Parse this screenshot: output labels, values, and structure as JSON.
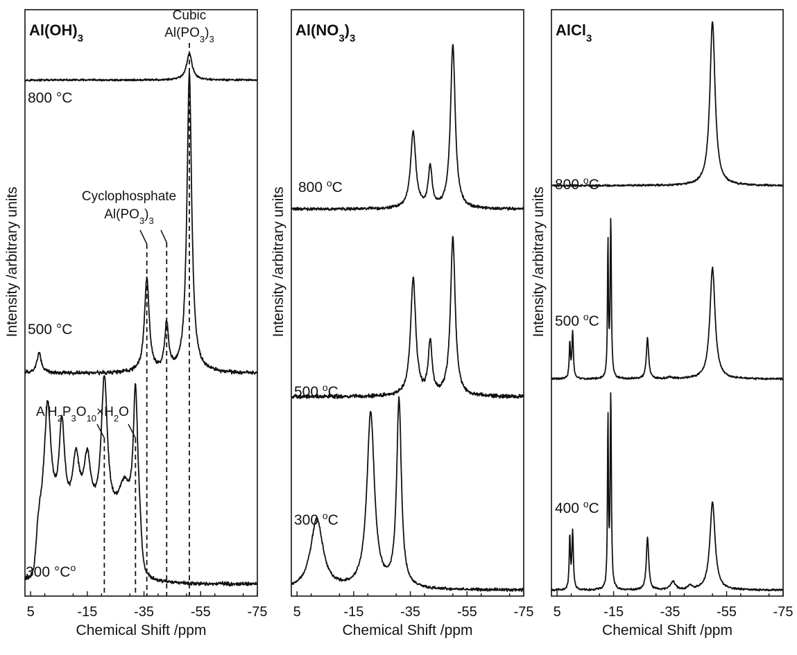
{
  "chart_data": [
    {
      "type": "line",
      "title": "Al(OH)",
      "title_sub": "3",
      "xlabel": "Chemical Shift /ppm",
      "ylabel": "Intensity /arbitrary units",
      "xlim": [
        7,
        -75
      ],
      "x_reversed": true,
      "xticks": [
        "5",
        "-15",
        "-35",
        "-55",
        "-75"
      ],
      "xtick_values": [
        5,
        -15,
        -35,
        -55,
        -75
      ],
      "series": [
        {
          "label": "800 °C",
          "baseline": 0.88,
          "peaks": [
            [
              -51,
              0.045,
              1.2
            ]
          ],
          "noise": 0.002
        },
        {
          "label": "500 °C",
          "baseline": 0.38,
          "peaks": [
            [
              2,
              0.035,
              0.9
            ],
            [
              -36,
              0.16,
              1.0
            ],
            [
              -43,
              0.08,
              0.8
            ],
            [
              -51,
              0.51,
              1.0
            ]
          ],
          "noise": 0.004
        },
        {
          "label": "300 °C",
          "label_sup": "o",
          "baseline": 0.02,
          "peaks": [
            [
              -1,
              0.2,
              1.4
            ],
            [
              -6,
              0.16,
              1.2
            ],
            [
              -11,
              0.1,
              1.5
            ],
            [
              -15,
              0.1,
              1.5
            ],
            [
              -21,
              0.24,
              1.3
            ],
            [
              -28,
              0.06,
              2.5
            ],
            [
              -32,
              0.22,
              0.9
            ]
          ],
          "plateau": [
            [
              3,
              -34,
              0.1
            ]
          ],
          "noise": 0.004
        }
      ],
      "annotations": [
        {
          "text": "Cubic",
          "target": -51
        },
        {
          "text": "Al(PO",
          "sub": "3",
          "suffix": ")",
          "sub2": "3",
          "target": -51
        },
        {
          "text": "Cyclophosphate",
          "targets": [
            -36,
            -43
          ]
        },
        {
          "text": "Al(PO",
          "sub": "3",
          "suffix": ")",
          "sub2": "3"
        },
        {
          "text": "AlH",
          "parts": [
            [
              "2",
              "P"
            ],
            [
              "3",
              "O"
            ],
            [
              "10",
              "×H"
            ],
            [
              "2",
              "O"
            ]
          ],
          "targets": [
            -21,
            -32
          ]
        }
      ]
    },
    {
      "type": "line",
      "title": "Al(NO",
      "title_sub": "3",
      "title_suffix": ")",
      "title_sub2": "3",
      "xlabel": "Chemical Shift /ppm",
      "ylabel": "Intensity /arbitrary units",
      "xlim": [
        7,
        -75
      ],
      "x_reversed": true,
      "xticks": [
        "5",
        "-15",
        "-35",
        "-55",
        "-75"
      ],
      "xtick_values": [
        5,
        -15,
        -35,
        -55,
        -75
      ],
      "series": [
        {
          "label": "800 ",
          "label_sup": "o",
          "label_suffix": "C",
          "baseline": 0.66,
          "peaks": [
            [
              -36,
              0.13,
              1.1
            ],
            [
              -42,
              0.07,
              0.8
            ],
            [
              -50,
              0.28,
              1.0
            ]
          ],
          "noise": 0.003
        },
        {
          "label": "500 ",
          "label_sup": "o",
          "label_suffix": "C",
          "baseline": 0.34,
          "peaks": [
            [
              -36,
              0.2,
              1.1
            ],
            [
              -42,
              0.09,
              0.8
            ],
            [
              -50,
              0.27,
              1.0
            ]
          ],
          "noise": 0.004
        },
        {
          "label": "300 ",
          "label_sup": "o",
          "label_suffix": "C",
          "baseline": 0.01,
          "peaks": [
            [
              -2,
              0.12,
              2.6
            ],
            [
              -21,
              0.3,
              1.6
            ],
            [
              -31,
              0.32,
              1.0
            ]
          ],
          "noise": 0.003
        }
      ]
    },
    {
      "type": "line",
      "title": "AlCl",
      "title_sub": "3",
      "xlabel": "Chemical Shift /ppm",
      "ylabel": "Intensity /arbitrary units",
      "xlim": [
        7,
        -75
      ],
      "x_reversed": true,
      "xticks": [
        "5",
        "-15",
        "-35",
        "-55",
        "-75"
      ],
      "xtick_values": [
        5,
        -15,
        -35,
        -55,
        -75
      ],
      "series": [
        {
          "label": "800 ",
          "label_sup": "o",
          "label_suffix": "C",
          "baseline": 0.7,
          "peaks": [
            [
              -50,
              0.28,
              1.1
            ]
          ],
          "noise": 0.002
        },
        {
          "label": "500 ",
          "label_sup": "o",
          "label_suffix": "C",
          "baseline": 0.37,
          "peaks": [
            [
              0.5,
              0.06,
              0.25
            ],
            [
              -0.5,
              0.08,
              0.3
            ],
            [
              -13,
              0.23,
              0.2
            ],
            [
              -14,
              0.27,
              0.25
            ],
            [
              -27,
              0.07,
              0.5
            ],
            [
              -35,
              0.003,
              1.0
            ],
            [
              -50,
              0.19,
              1.1
            ]
          ],
          "noise": 0.002
        },
        {
          "label": "400 ",
          "label_sup": "o",
          "label_suffix": "C",
          "baseline": 0.01,
          "peaks": [
            [
              0.5,
              0.09,
              0.25
            ],
            [
              -0.5,
              0.1,
              0.3
            ],
            [
              -13,
              0.29,
              0.2
            ],
            [
              -14,
              0.33,
              0.25
            ],
            [
              -27,
              0.09,
              0.5
            ],
            [
              -36,
              0.014,
              1.0
            ],
            [
              -42,
              0.007,
              0.8
            ],
            [
              -50,
              0.15,
              1.1
            ]
          ],
          "noise": 0.002
        }
      ]
    }
  ]
}
